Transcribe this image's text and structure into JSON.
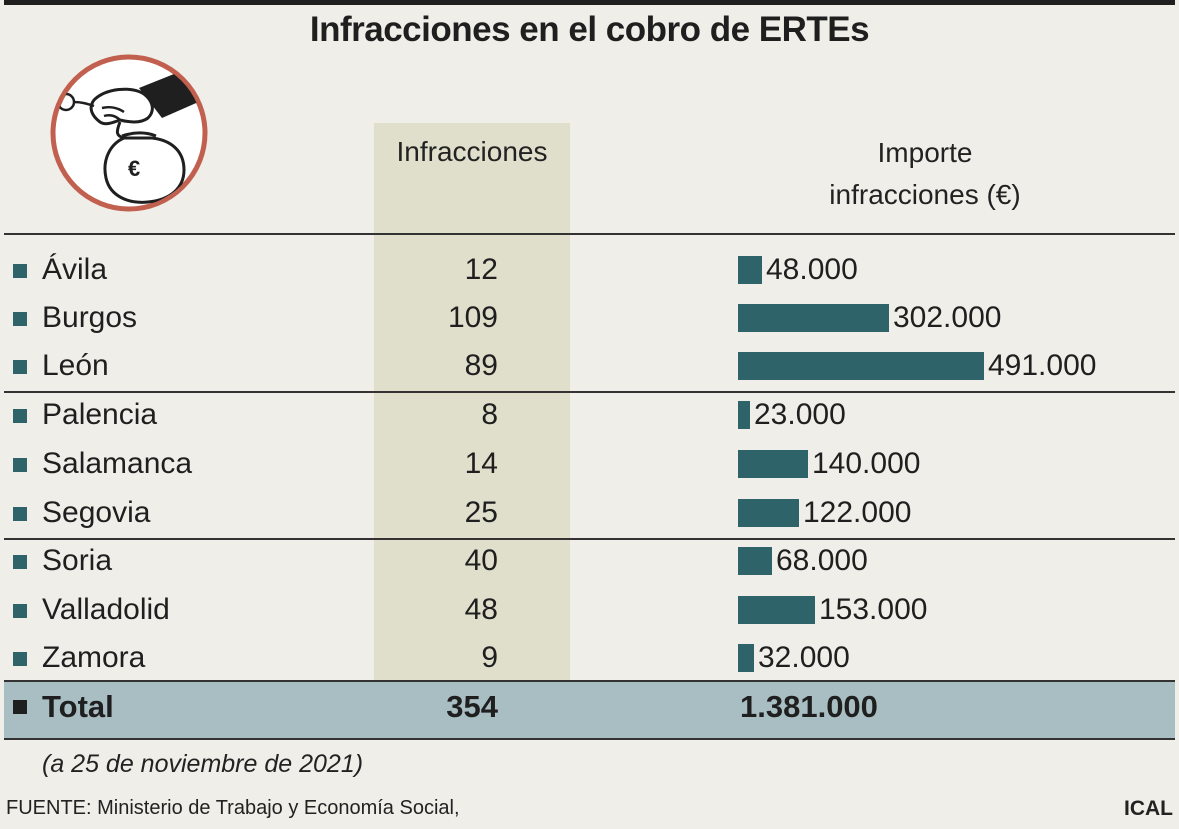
{
  "title": "Infracciones en el cobro de ERTEs",
  "headers": {
    "infracciones": "Infracciones",
    "importe_line1": "Importe",
    "importe_line2": "infracciones (€)"
  },
  "illustration": {
    "icon": "money-bag-hand-icon",
    "symbol": "€"
  },
  "colors": {
    "bar": "#2e6369",
    "column_band": "#dfdfcc",
    "total_band": "#a8bec3",
    "ring": "#c2604f",
    "background": "#efeee9"
  },
  "chart_data": {
    "type": "table",
    "columns": [
      "",
      "Infracciones",
      "Importe infracciones (€)"
    ],
    "rows": [
      {
        "provincia": "Ávila",
        "infracciones": "12",
        "importe": 48000,
        "importe_label": "48.000"
      },
      {
        "provincia": "Burgos",
        "infracciones": "109",
        "importe": 302000,
        "importe_label": "302.000"
      },
      {
        "provincia": "León",
        "infracciones": "89",
        "importe": 491000,
        "importe_label": "491.000"
      },
      {
        "provincia": "Palencia",
        "infracciones": "8",
        "importe": 23000,
        "importe_label": "23.000"
      },
      {
        "provincia": "Salamanca",
        "infracciones": "14",
        "importe": 140000,
        "importe_label": "140.000"
      },
      {
        "provincia": "Segovia",
        "infracciones": "25",
        "importe": 122000,
        "importe_label": "122.000"
      },
      {
        "provincia": "Soria",
        "infracciones": "40",
        "importe": 68000,
        "importe_label": "68.000"
      },
      {
        "provincia": "Valladolid",
        "infracciones": "48",
        "importe": 153000,
        "importe_label": "153.000"
      },
      {
        "provincia": "Zamora",
        "infracciones": "9",
        "importe": 32000,
        "importe_label": "32.000"
      }
    ],
    "total": {
      "label": "Total",
      "infracciones": "354",
      "importe_label": "1.381.000"
    }
  },
  "note": "(a 25 de noviembre de 2021)",
  "source": "FUENTE: Ministerio de Trabajo y Economía Social,",
  "credit": "ICAL"
}
